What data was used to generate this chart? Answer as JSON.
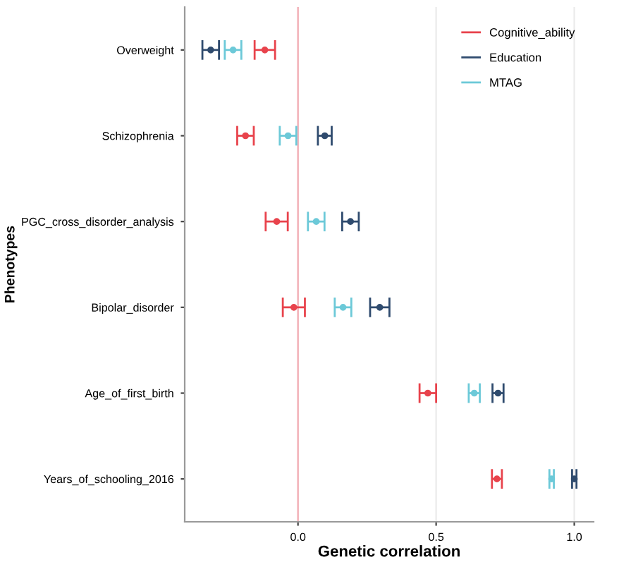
{
  "chart_data": {
    "type": "scatter",
    "orientation": "horizontal",
    "xlabel": "Genetic correlation",
    "ylabel": "Phenotypes",
    "categories": [
      "Overweight",
      "Schizophrenia",
      "PGC_cross_disorder_analysis",
      "Bipolar_disorder",
      "Age_of_first_birth",
      "Years_of_schooling_2016"
    ],
    "series": [
      {
        "name": "Cognitive_ability",
        "color": "#e8434c",
        "values": [
          -0.12,
          -0.19,
          -0.077,
          -0.015,
          0.47,
          0.72
        ],
        "errors": [
          0.037,
          0.03,
          0.04,
          0.04,
          0.03,
          0.018
        ]
      },
      {
        "name": "Education",
        "color": "#2f4b6e",
        "values": [
          -0.316,
          0.097,
          0.19,
          0.296,
          0.724,
          1.0
        ],
        "errors": [
          0.03,
          0.025,
          0.03,
          0.035,
          0.02,
          0.008
        ]
      },
      {
        "name": "MTAG",
        "color": "#6cc9d8",
        "values": [
          -0.235,
          -0.036,
          0.066,
          0.163,
          0.638,
          0.918
        ],
        "errors": [
          0.03,
          0.03,
          0.03,
          0.03,
          0.02,
          0.008
        ]
      }
    ],
    "xlim": [
      -0.41,
      1.07
    ],
    "xticks": [
      {
        "value": 0,
        "label": "0.0"
      },
      0.5,
      {
        "value": 1,
        "label": "1.0"
      }
    ],
    "ref_lines": [
      {
        "axis": "x",
        "value": 0,
        "color": "#f4b3ba"
      }
    ],
    "grid": "x",
    "legend": "top right",
    "marker": "circle"
  }
}
